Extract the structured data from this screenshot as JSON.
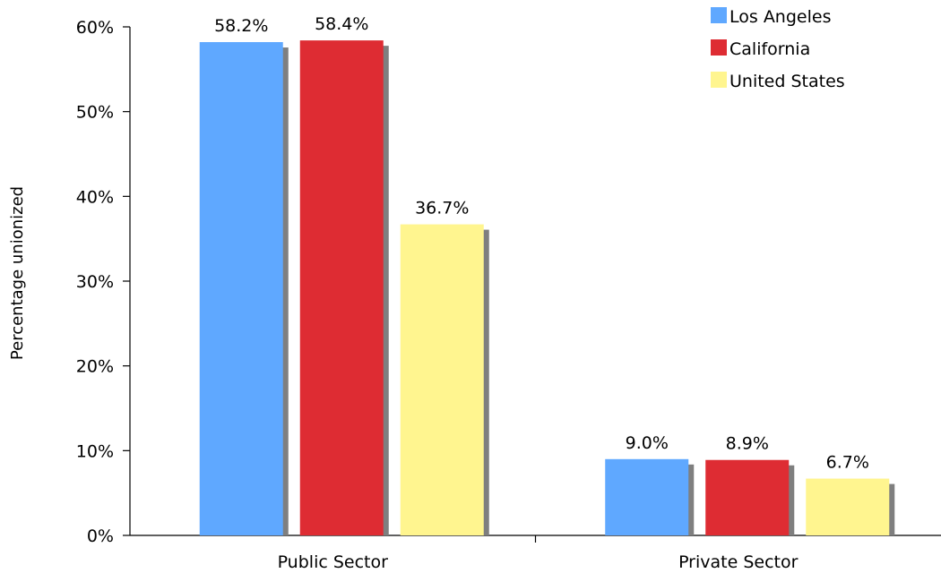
{
  "chart_data": {
    "type": "bar",
    "title": "",
    "xlabel": "",
    "ylabel": "Percentage unionized",
    "categories": [
      "Public Sector",
      "Private Sector"
    ],
    "series": [
      {
        "name": "Los Angeles",
        "values": [
          58.2,
          9.0
        ],
        "labels": [
          "58.2%",
          "9.0%"
        ],
        "color": "#5fa8ff"
      },
      {
        "name": "California",
        "values": [
          58.4,
          8.9
        ],
        "labels": [
          "58.4%",
          "8.9%"
        ],
        "color": "#de2c33"
      },
      {
        "name": "United States",
        "values": [
          36.7,
          6.7
        ],
        "labels": [
          "36.7%",
          "6.7%"
        ],
        "color": "#fff58f"
      }
    ],
    "ylim": [
      0,
      60
    ],
    "yticks": [
      0,
      10,
      20,
      30,
      40,
      50,
      60
    ],
    "ytick_labels": [
      "0%",
      "10%",
      "20%",
      "30%",
      "40%",
      "50%",
      "60%"
    ],
    "grid": false,
    "legend_position": "top-right",
    "shadow_color": "#7f7f7f"
  }
}
